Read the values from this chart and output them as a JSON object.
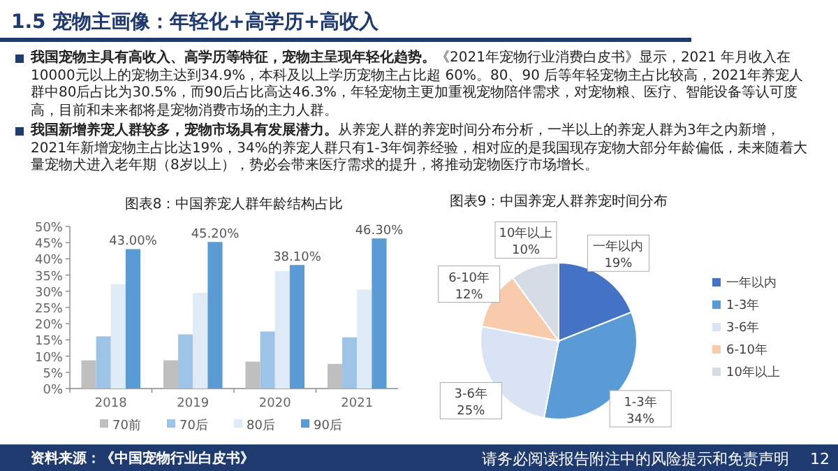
{
  "chart_data": [
    {
      "type": "other",
      "title": "1.5 宠物主画像：年轻化+高学历+高收入",
      "annotations": [
        "**我国宠物主具有高收入、高学历等特征，宠物主呈现年轻化趋势。**《2021年宠物行业消费白皮书》显示，2021 年月收入在10000元以上的宠物主达到34.9%，本科及以上学历宠物主占比超 60%。80、90 后等年轻宠物主占比较高，2021年养宠人群中80后占比为30.5%，而90后占比高达46.3%，年轻宠物主更加重视宠物陪伴需求，对宠物粮、医疗、智能设备等认可度高，目前和未来都将是宠物消费市场的主力人群。",
        "**我国新增养宠人群较多，宠物市场具有发展潜力。**从养宠人群的养宠时间分布分析，一半以上的养宠人群为3年之内新增，2021年新增宠物主占比达19%，34%的养宠人群只有1-3年饲养经验，相对应的是我国现存宠物大部分年龄偏低，未来随着大量宠物犬进入老年期（8岁以上），势必会带来医疗需求的提升，将推动宠物医疗市场增长。",
        "资料来源：《中国宠物行业白皮书》",
        "请务必阅读报告附注中的风险提示和免责声明",
        "12"
      ]
    },
    {
      "type": "bar",
      "title": "图表8：中国养宠人群年龄结构占比",
      "categories": [
        "2018",
        "2019",
        "2020",
        "2021"
      ],
      "series": [
        {
          "name": "70前",
          "color": "#bfbfbf",
          "values": [
            8.7,
            8.7,
            8.3,
            7.6
          ]
        },
        {
          "name": "70后",
          "color": "#9dc3e6",
          "values": [
            16.1,
            16.7,
            17.6,
            15.8
          ]
        },
        {
          "name": "80后",
          "color": "#deebf7",
          "values": [
            32.2,
            29.5,
            36.2,
            30.5
          ]
        },
        {
          "name": "90后",
          "color": "#5b9bd5",
          "values": [
            43.0,
            45.2,
            38.1,
            46.3
          ],
          "value_labels": [
            "43.00%",
            "45.20%",
            "38.10%",
            "46.30%"
          ]
        }
      ],
      "ylim": [
        0,
        50
      ],
      "yticks": [
        {
          "value": 0,
          "label": "0%"
        },
        {
          "value": 5,
          "label": "5%"
        },
        {
          "value": 10,
          "label": "10%"
        },
        {
          "value": 15,
          "label": "15%"
        },
        {
          "value": 20,
          "label": "20%"
        },
        {
          "value": 25,
          "label": "25%"
        },
        {
          "value": 30,
          "label": "30%"
        },
        {
          "value": 35,
          "label": "35%"
        },
        {
          "value": 40,
          "label": "40%"
        },
        {
          "value": 45,
          "label": "45%"
        },
        {
          "value": 50,
          "label": "50%"
        }
      ],
      "legend": "bottom"
    },
    {
      "type": "pie",
      "title": "图表9：中国养宠人群养宠时间分布",
      "categories": [
        "一年以内",
        "1-3年",
        "3-6年",
        "6-10年",
        "10年以上"
      ],
      "values": [
        19,
        34,
        25,
        12,
        10
      ],
      "colors": [
        "#4472c4",
        "#5b9bd5",
        "#dae3f3",
        "#f8cbad",
        "#d6dce5"
      ],
      "value_labels": [
        "19%",
        "34%",
        "25%",
        "12%",
        "10%"
      ],
      "legend": "right"
    }
  ]
}
